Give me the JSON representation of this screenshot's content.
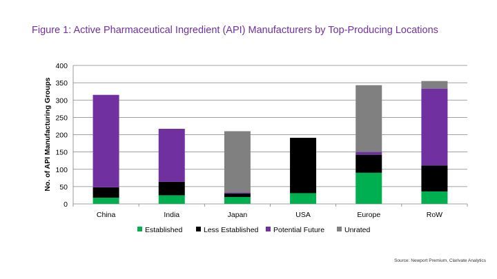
{
  "title": "Figure 1: Active Pharmaceutical Ingredient (API) Manufacturers by Top-Producing Locations",
  "source": "Source: Newport Premium, Clarivate Analytics",
  "chart_data": {
    "type": "bar",
    "stacked": true,
    "categories": [
      "China",
      "India",
      "Japan",
      "USA",
      "Europe",
      "RoW"
    ],
    "series": [
      {
        "name": "Established",
        "color": "#00b050",
        "values": [
          18,
          25,
          20,
          31,
          90,
          36
        ]
      },
      {
        "name": "Less Established",
        "color": "#000000",
        "values": [
          30,
          39,
          10,
          160,
          52,
          75
        ]
      },
      {
        "name": "Potential Future",
        "color": "#7030a0",
        "values": [
          267,
          153,
          3,
          0,
          8,
          222
        ]
      },
      {
        "name": "Unrated",
        "color": "#808080",
        "values": [
          0,
          0,
          177,
          0,
          193,
          22
        ]
      }
    ],
    "ylabel": "No. of API Manufacturing Groups",
    "xlabel": "",
    "ylim": [
      0,
      400
    ],
    "yticks": [
      0,
      50,
      100,
      150,
      200,
      250,
      300,
      350,
      400
    ],
    "grid": true,
    "legend_position": "bottom"
  }
}
